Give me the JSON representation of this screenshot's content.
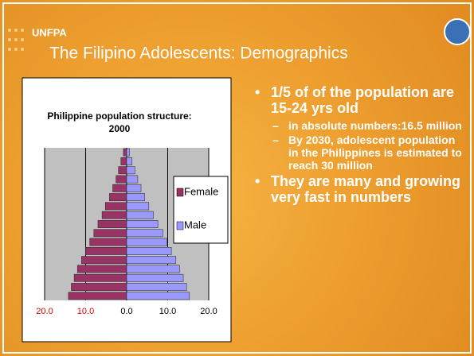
{
  "slide": {
    "logo": "UNFPA",
    "title": "The Filipino Adolescents: Demographics",
    "bullets": [
      {
        "text": "1/5 of of the population are 15-24 yrs old",
        "subitems": [
          "in absolute numbers:16.5 million",
          "By 2030, adolescent population in the Philippines is estimated to reach 30 million"
        ]
      },
      {
        "text": "They are many and growing very fast in numbers",
        "subitems": []
      }
    ]
  },
  "chart_data": {
    "type": "pyramid",
    "title": "Philippine population structure: 2000",
    "categories": [
      null,
      null,
      null,
      null,
      null,
      null,
      null,
      null,
      null,
      null,
      null,
      null,
      null,
      null,
      null,
      null,
      null
    ],
    "series": [
      {
        "name": "Female",
        "color": "#993366",
        "values": [
          -14.2,
          -13.5,
          -12.8,
          -12,
          -11,
          -10,
          -9,
          -8,
          -7,
          -6,
          -5.2,
          -4.2,
          -3.4,
          -2.6,
          -2,
          -1.4,
          -0.8
        ]
      },
      {
        "name": "Male",
        "color": "#9999ff",
        "values": [
          15.3,
          14.6,
          13.8,
          12.9,
          12,
          10.9,
          9.8,
          8.8,
          7.6,
          6.5,
          5.4,
          4.4,
          3.5,
          2.7,
          2,
          1.3,
          0.7
        ]
      }
    ],
    "xlim": [
      -20,
      20
    ],
    "xticks": [
      {
        "value": -20,
        "label": "20.0"
      },
      {
        "value": -10,
        "label": "10.0"
      },
      {
        "value": 0,
        "label": "0.0"
      },
      {
        "value": 10,
        "label": "10.0"
      },
      {
        "value": 20,
        "label": "20.0"
      }
    ],
    "grid": true,
    "legend": "right"
  }
}
